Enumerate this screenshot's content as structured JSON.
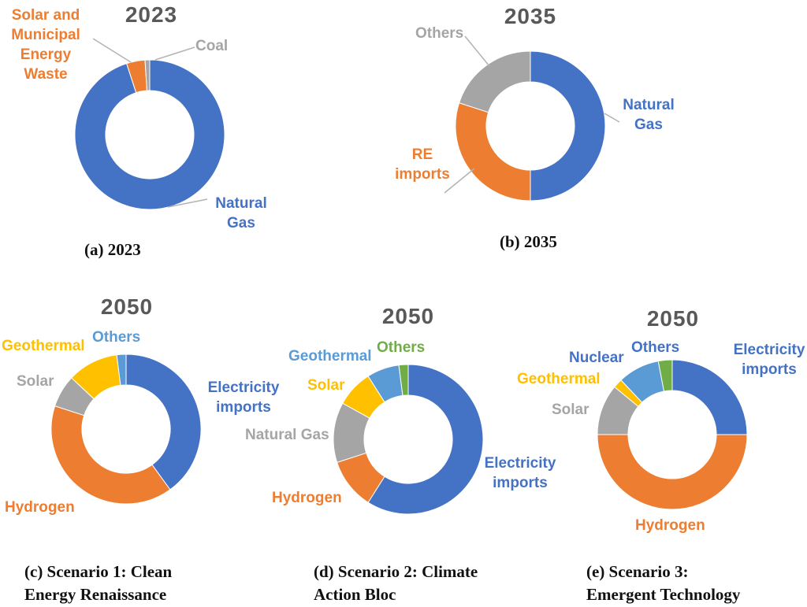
{
  "figure": {
    "background": "#ffffff",
    "palette": {
      "blue": "#4472C4",
      "orange": "#ED7D31",
      "gray": "#A5A5A5",
      "yellow": "#FFC000",
      "lightblue": "#5B9BD5",
      "green": "#70AD47",
      "title_gray": "#595959",
      "caption_black": "#111111",
      "leader_line": "#b3b3b3"
    }
  },
  "chart_data": [
    {
      "id": "a",
      "type": "pie",
      "variant": "donut",
      "title": "2023",
      "caption_lines": [
        "(a) 2023"
      ],
      "start_angle_deg": 0,
      "direction": "clockwise",
      "hole_ratio": 0.59,
      "legend_position": "none",
      "series": [
        {
          "label": "Natural Gas",
          "value": 95,
          "color": "#4472C4",
          "label_color": "#4472C4"
        },
        {
          "label": "Solar and Municipal Energy Waste",
          "value": 4,
          "color": "#ED7D31",
          "label_color": "#ED7D31"
        },
        {
          "label": "Coal",
          "value": 1,
          "color": "#A5A5A5",
          "label_color": "#A5A5A5"
        }
      ]
    },
    {
      "id": "b",
      "type": "pie",
      "variant": "donut",
      "title": "2035",
      "caption_lines": [
        "(b) 2035"
      ],
      "start_angle_deg": 0,
      "direction": "clockwise",
      "hole_ratio": 0.59,
      "legend_position": "none",
      "series": [
        {
          "label": "Natural Gas",
          "value": 50,
          "color": "#4472C4",
          "label_color": "#4472C4"
        },
        {
          "label": "RE imports",
          "value": 30,
          "color": "#ED7D31",
          "label_color": "#ED7D31"
        },
        {
          "label": "Others",
          "value": 20,
          "color": "#A5A5A5",
          "label_color": "#A5A5A5"
        }
      ]
    },
    {
      "id": "c",
      "type": "pie",
      "variant": "donut",
      "title": "2050",
      "caption_lines": [
        "(c) Scenario 1: Clean",
        "Energy Renaissance"
      ],
      "start_angle_deg": 0,
      "direction": "clockwise",
      "hole_ratio": 0.59,
      "legend_position": "none",
      "series": [
        {
          "label": "Electricity imports",
          "value": 40,
          "color": "#4472C4",
          "label_color": "#4472C4"
        },
        {
          "label": "Hydrogen",
          "value": 40,
          "color": "#ED7D31",
          "label_color": "#ED7D31"
        },
        {
          "label": "Solar",
          "value": 7,
          "color": "#A5A5A5",
          "label_color": "#A5A5A5"
        },
        {
          "label": "Geothermal",
          "value": 11,
          "color": "#FFC000",
          "label_color": "#FFC000"
        },
        {
          "label": "Others",
          "value": 2,
          "color": "#5B9BD5",
          "label_color": "#5B9BD5"
        }
      ]
    },
    {
      "id": "d",
      "type": "pie",
      "variant": "donut",
      "title": "2050",
      "caption_lines": [
        "(d) Scenario 2: Climate",
        "Action Bloc"
      ],
      "start_angle_deg": 0,
      "direction": "clockwise",
      "hole_ratio": 0.59,
      "legend_position": "none",
      "series": [
        {
          "label": "Electricity imports",
          "value": 59,
          "color": "#4472C4",
          "label_color": "#4472C4"
        },
        {
          "label": "Hydrogen",
          "value": 11,
          "color": "#ED7D31",
          "label_color": "#ED7D31"
        },
        {
          "label": "Natural Gas",
          "value": 13,
          "color": "#A5A5A5",
          "label_color": "#A5A5A5"
        },
        {
          "label": "Solar",
          "value": 8,
          "color": "#FFC000",
          "label_color": "#FFC000"
        },
        {
          "label": "Geothermal",
          "value": 7,
          "color": "#5B9BD5",
          "label_color": "#5B9BD5"
        },
        {
          "label": "Others",
          "value": 2,
          "color": "#70AD47",
          "label_color": "#70AD47"
        }
      ]
    },
    {
      "id": "e",
      "type": "pie",
      "variant": "donut",
      "title": "2050",
      "caption_lines": [
        "(e) Scenario 3:",
        "Emergent Technology"
      ],
      "start_angle_deg": 0,
      "direction": "clockwise",
      "hole_ratio": 0.59,
      "legend_position": "none",
      "series": [
        {
          "label": "Electricity imports",
          "value": 25,
          "color": "#4472C4",
          "label_color": "#4472C4"
        },
        {
          "label": "Hydrogen",
          "value": 50,
          "color": "#ED7D31",
          "label_color": "#ED7D31"
        },
        {
          "label": "Solar",
          "value": 11,
          "color": "#A5A5A5",
          "label_color": "#A5A5A5"
        },
        {
          "label": "Geothermal",
          "value": 2,
          "color": "#FFC000",
          "label_color": "#FFC000"
        },
        {
          "label": "Nuclear",
          "value": 9,
          "color": "#5B9BD5",
          "label_color": "#4472C4"
        },
        {
          "label": "Others",
          "value": 3,
          "color": "#70AD47",
          "label_color": "#4472C4"
        }
      ]
    }
  ]
}
